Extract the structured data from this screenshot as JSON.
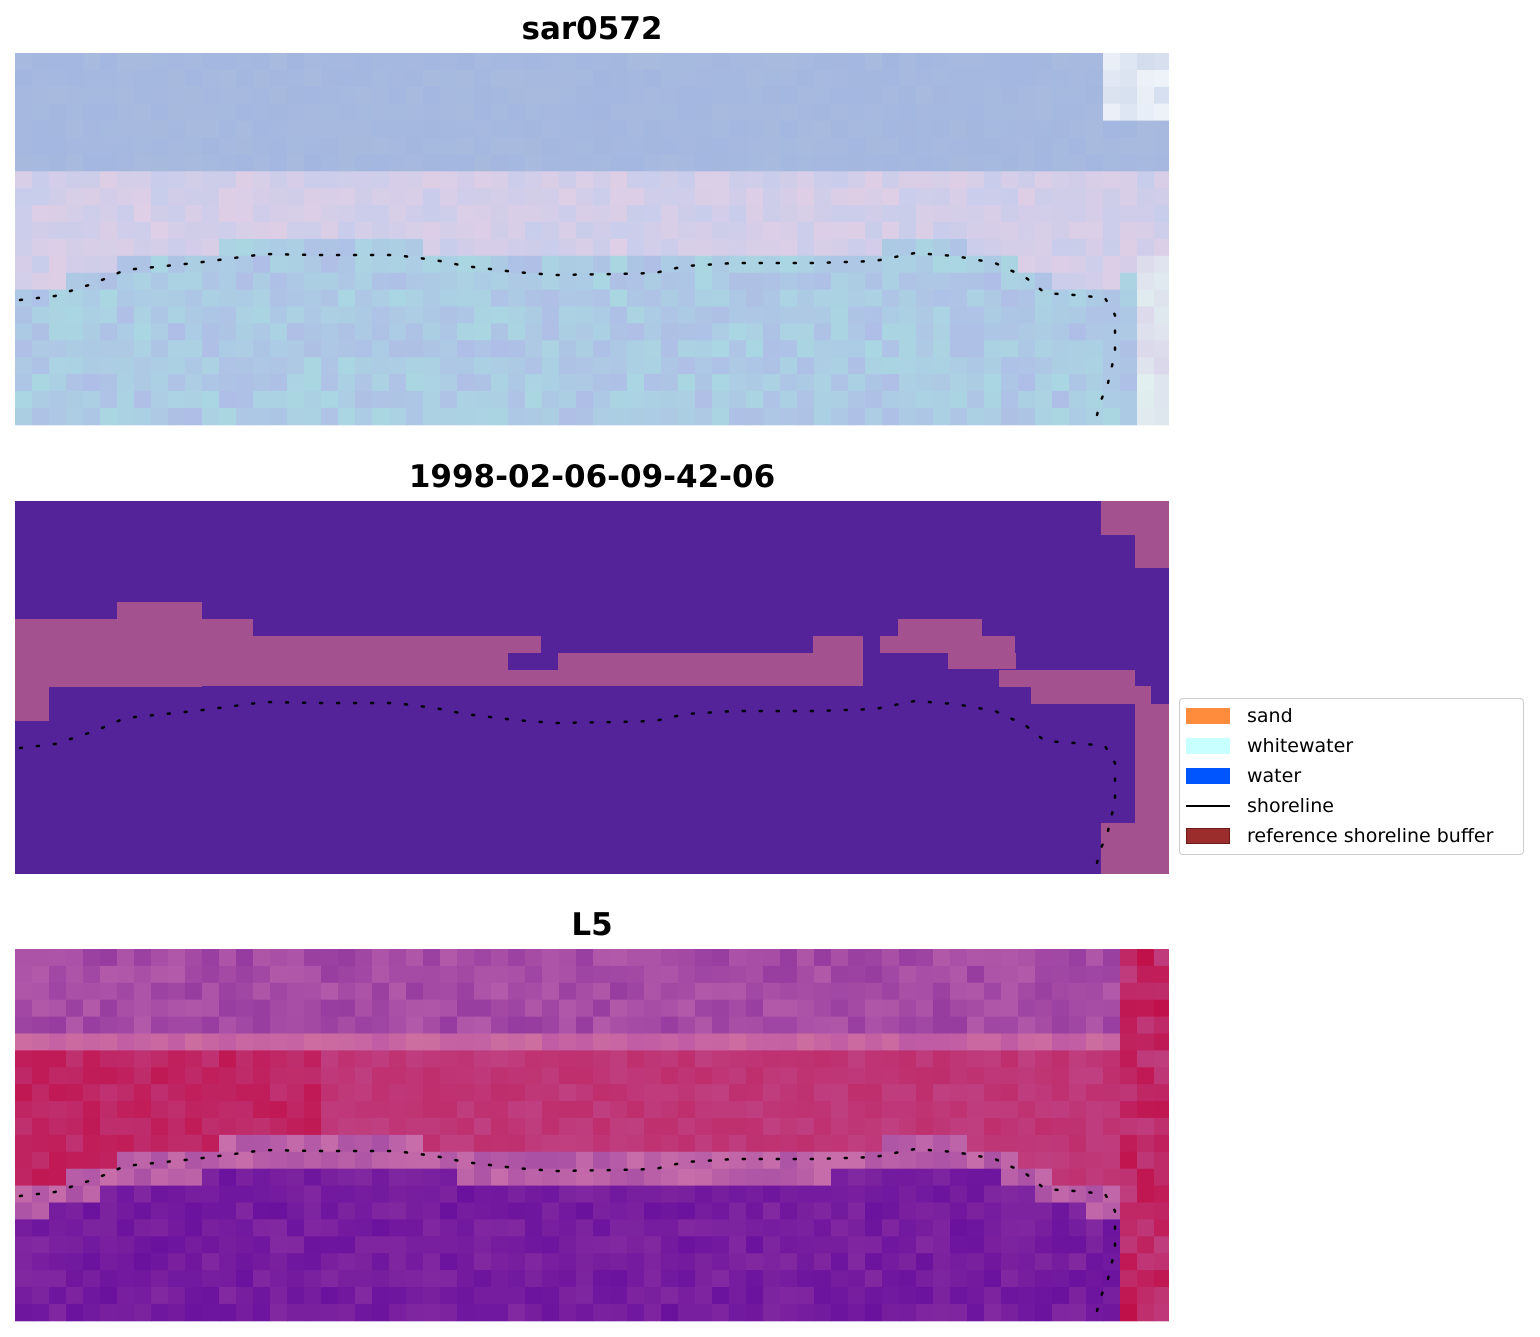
{
  "panels": [
    {
      "title": "sar0572",
      "kind": "rgb"
    },
    {
      "title": "1998-02-06-09-42-06",
      "kind": "classification"
    },
    {
      "title": "L5",
      "kind": "index"
    }
  ],
  "legend": {
    "items": [
      {
        "label": "sand",
        "color": "#ff8c3d",
        "type": "patch"
      },
      {
        "label": "whitewater",
        "color": "#c8ffff",
        "type": "patch"
      },
      {
        "label": "water",
        "color": "#0055ff",
        "type": "patch"
      },
      {
        "label": "shoreline",
        "color": "#000000",
        "type": "line"
      },
      {
        "label": "reference shoreline buffer",
        "color": "#9b2d2d",
        "type": "patch"
      }
    ]
  },
  "colors": {
    "classification_background": "#54239a",
    "classification_buffer": "#a4528f",
    "rgb_base": "#b4c4df",
    "index_low": "#6a129e",
    "index_high": "#c0104a"
  }
}
